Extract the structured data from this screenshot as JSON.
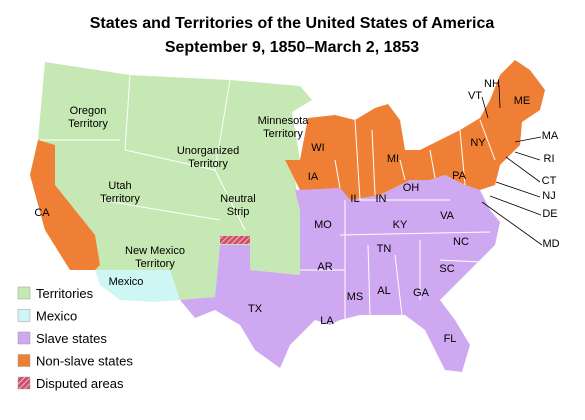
{
  "title": [
    "States and Territories of the United States of America",
    "September 9, 1850–March 2, 1853"
  ],
  "labels": [
    [
      "Oregon",
      "Territory"
    ],
    [
      "Minnesota",
      "Territory"
    ],
    [
      "Unorganized",
      "Territory"
    ],
    [
      "Utah",
      "Territory"
    ],
    [
      "Neutral",
      "Strip"
    ],
    [
      "New Mexico",
      "Territory"
    ],
    [
      "Mexico"
    ],
    [
      "CA"
    ],
    [
      "WI"
    ],
    [
      "MI"
    ],
    [
      "IA"
    ],
    [
      "IL"
    ],
    [
      "IN"
    ],
    [
      "OH"
    ],
    [
      "PA"
    ],
    [
      "NY"
    ],
    [
      "ME"
    ],
    [
      "VT"
    ],
    [
      "NH"
    ],
    [
      "MA"
    ],
    [
      "RI"
    ],
    [
      "CT"
    ],
    [
      "NJ"
    ],
    [
      "DE"
    ],
    [
      "MD"
    ],
    [
      "MO"
    ],
    [
      "KY"
    ],
    [
      "VA"
    ],
    [
      "TN"
    ],
    [
      "NC"
    ],
    [
      "AR"
    ],
    [
      "SC"
    ],
    [
      "MS"
    ],
    [
      "AL"
    ],
    [
      "GA"
    ],
    [
      "TX"
    ],
    [
      "LA"
    ],
    [
      "FL"
    ]
  ],
  "legend": [
    {
      "label": "Territories",
      "color": "#c6e8b4"
    },
    {
      "label": "Mexico",
      "color": "#cdf6f4"
    },
    {
      "label": "Slave states",
      "color": "#cfa8f2"
    },
    {
      "label": "Non-slave states",
      "color": "#f07f36"
    },
    {
      "label": "Disputed areas",
      "color": "#d0506c"
    }
  ]
}
